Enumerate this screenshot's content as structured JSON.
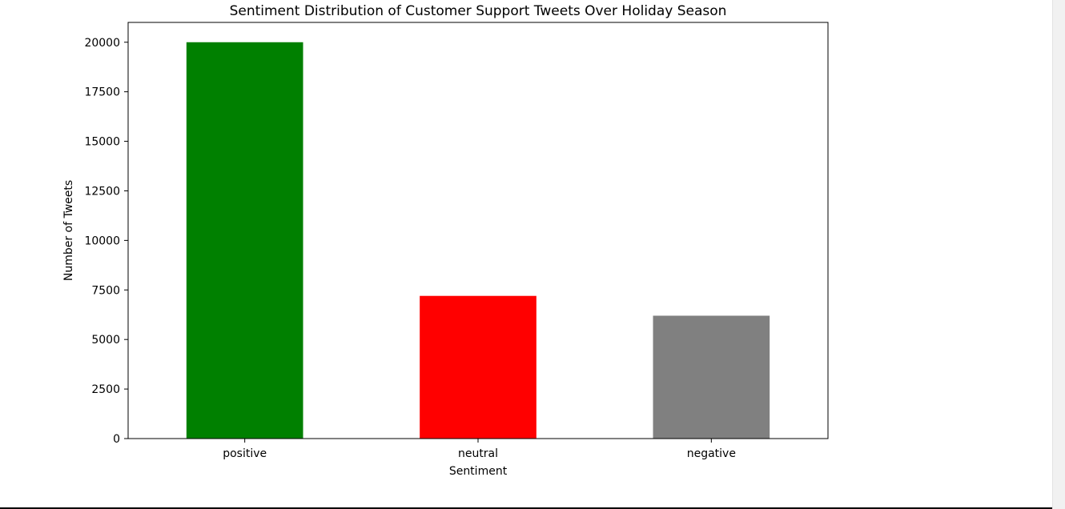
{
  "chart_data": {
    "type": "bar",
    "title": "Sentiment Distribution of Customer Support Tweets Over Holiday Season",
    "xlabel": "Sentiment",
    "ylabel": "Number of Tweets",
    "categories": [
      "positive",
      "neutral",
      "negative"
    ],
    "values": [
      20000,
      7200,
      6200
    ],
    "colors": [
      "#008000",
      "#ff0000",
      "#808080"
    ],
    "ylim": [
      0,
      21000
    ],
    "yticks": [
      0,
      2500,
      5000,
      7500,
      10000,
      12500,
      15000,
      17500,
      20000
    ],
    "grid": false,
    "legend": "none"
  }
}
